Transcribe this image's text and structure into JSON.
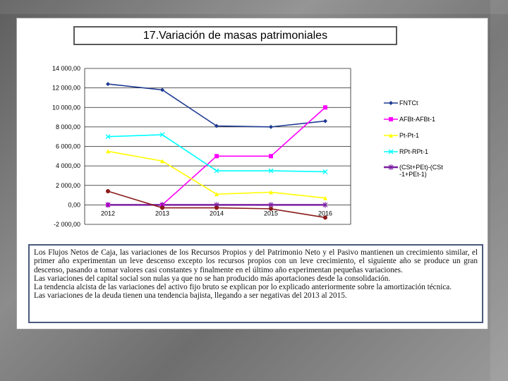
{
  "slide": {
    "title": "17.Variación de masas patrimoniales"
  },
  "chart_data": {
    "type": "line",
    "title": "17.Variación de masas patrimoniales",
    "xlabel": "",
    "ylabel": "",
    "categories": [
      "2012",
      "2013",
      "2014",
      "2015",
      "2016"
    ],
    "ylim": [
      -2000,
      14000
    ],
    "yticks": [
      -2000,
      0,
      2000,
      4000,
      6000,
      8000,
      10000,
      12000,
      14000
    ],
    "ytick_labels": [
      "-2 000,00",
      "0,00",
      "2 000,00",
      "4 000,00",
      "6 000,00",
      "8 000,00",
      "10 000,00",
      "12 000,00",
      "14 000,00"
    ],
    "grid": true,
    "legend_position": "right",
    "series": [
      {
        "name": "FNTCt",
        "color": "#1f3a93",
        "marker": "diamond",
        "values": [
          12400,
          11800,
          8100,
          8000,
          8600
        ]
      },
      {
        "name": "AFBt-AFBt-1",
        "color": "#ff00ff",
        "marker": "square",
        "values": [
          0,
          0,
          5000,
          5000,
          10000
        ]
      },
      {
        "name": "Pt-Pt-1",
        "color": "#ffff00",
        "marker": "triangle",
        "values": [
          5500,
          4500,
          1100,
          1300,
          700
        ]
      },
      {
        "name": "RPt-RPt-1",
        "color": "#00ffff",
        "marker": "x",
        "values": [
          7000,
          7200,
          3500,
          3500,
          3400
        ]
      },
      {
        "name": "(CSt+PEt)-(CSt-1+PEt-1)",
        "color": "#7b1fa2",
        "marker": "star",
        "values": [
          0,
          0,
          0,
          0,
          0
        ]
      },
      {
        "name": "",
        "color": "#8b1a1a",
        "marker": "circle",
        "values": [
          1400,
          -300,
          -300,
          -400,
          -1300
        ]
      }
    ]
  },
  "description": {
    "paragraphs": [
      "Los Flujos Netos de Caja, las variaciones de los Recursos Propios y del Patrimonio Neto y el Pasivo mantienen un crecimiento similar, el primer año experimentan un leve descenso excepto los recursos propios con un leve crecimiento, el siguiente año se produce un gran descenso, pasando a tomar valores casi constantes y finalmente en el último año experimentan pequeñas variaciones.",
      "Las variaciones del capital social son nulas ya que no se han producido más aportaciones desde la consolidación.",
      "La tendencia alcista de las variaciones del activo fijo bruto se explican por lo explicado anteriormente sobre la amortización técnica.",
      "Las variaciones de la deuda tienen una tendencia bajista, llegando a ser negativas del 2013 al 2015."
    ]
  }
}
